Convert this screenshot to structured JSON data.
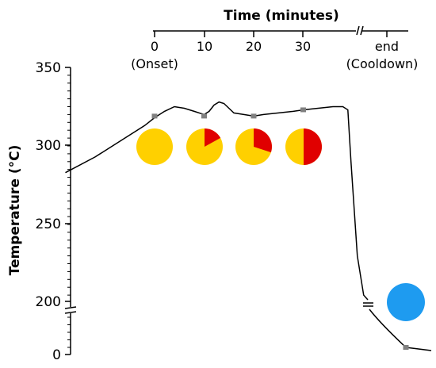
{
  "chart_data": {
    "type": "line",
    "title": "",
    "xlabel": "Time (minutes)",
    "ylabel": "Temperature (°C)",
    "x_ticks": [
      {
        "value": "0",
        "sub": "(Onset)"
      },
      {
        "value": "10",
        "sub": ""
      },
      {
        "value": "20",
        "sub": ""
      },
      {
        "value": "30",
        "sub": ""
      },
      {
        "value": "end",
        "sub": "(Cooldown)"
      }
    ],
    "y_ticks": [
      "350",
      "300",
      "250",
      "200",
      "0"
    ],
    "y_axis_break": true,
    "x_axis_break": true,
    "series": [
      {
        "x": [
          -18,
          -12,
          -6,
          -2,
          0,
          2,
          4,
          6,
          8,
          10,
          11,
          12,
          13,
          14,
          15,
          16,
          18,
          20,
          22,
          25,
          28,
          30,
          33,
          36,
          38,
          39
        ],
        "y": [
          283,
          293,
          305,
          313,
          318,
          322,
          325,
          324,
          322,
          320,
          322,
          326,
          328,
          327,
          324,
          321,
          320,
          319,
          320,
          321,
          322,
          323,
          324,
          325,
          325,
          323
        ],
        "marker_x": [
          0,
          10,
          20,
          30
        ],
        "marker_y": [
          319,
          319,
          319,
          323
        ],
        "color": "#000000"
      }
    ],
    "cooldown_end_point": {
      "label": "end",
      "y": 15
    },
    "pies": [
      {
        "at": "0",
        "red_fraction": 0.0
      },
      {
        "at": "10",
        "red_fraction": 0.17
      },
      {
        "at": "20",
        "red_fraction": 0.3
      },
      {
        "at": "30",
        "red_fraction": 0.5
      }
    ],
    "cooldown_marker_color": "#1e9bf0",
    "pie_colors": {
      "main": "#ffd000",
      "fraction": "#e00000"
    },
    "marker_color": "#808080",
    "grid": false,
    "legend": "none"
  }
}
